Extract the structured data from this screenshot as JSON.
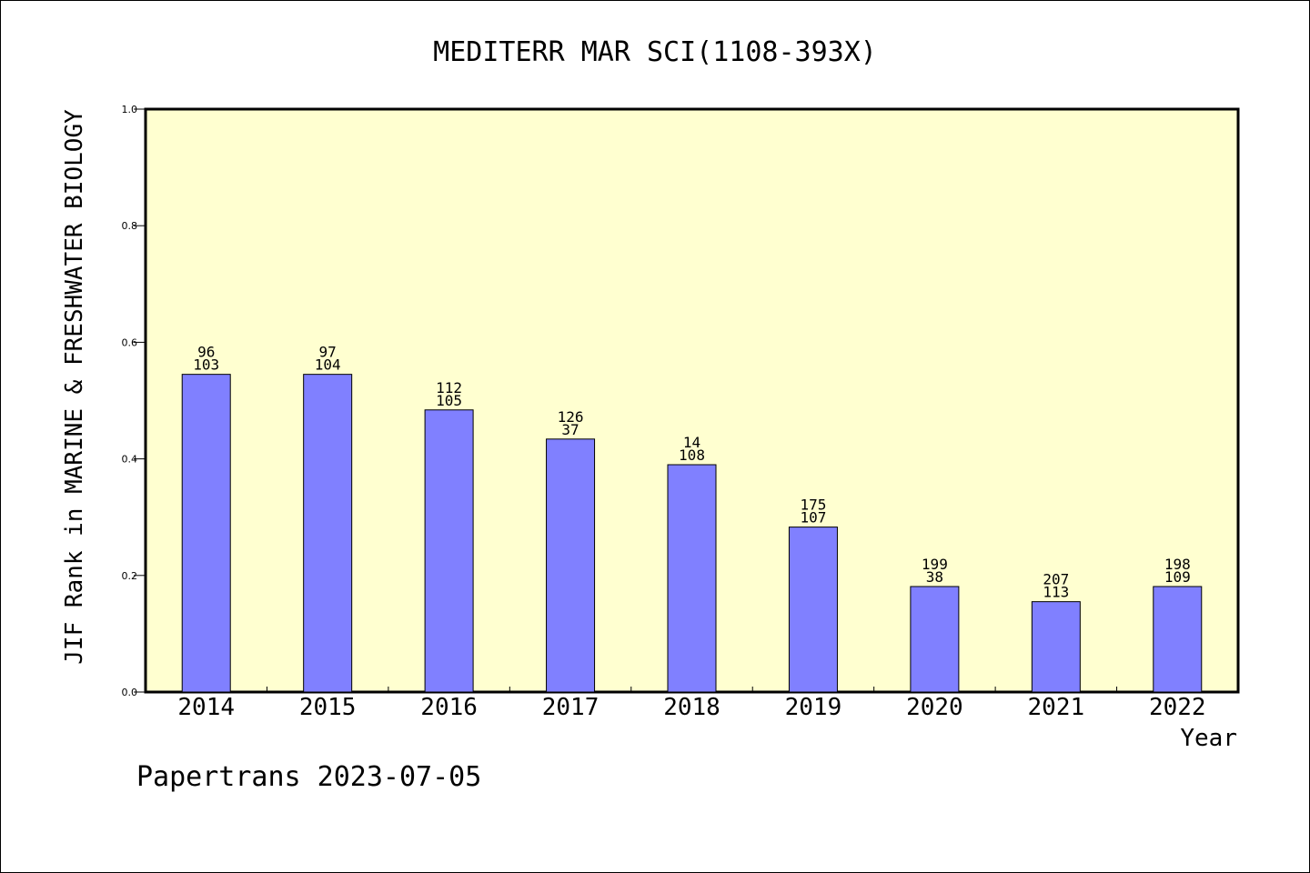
{
  "chart_data": {
    "type": "bar",
    "title": "MEDITERR MAR SCI(1108-393X)",
    "xlabel": "Year",
    "ylabel": "JIF Rank in MARINE & FRESHWATER BIOLOGY",
    "footer": "Papertrans 2023-07-05",
    "categories": [
      "2014",
      "2015",
      "2016",
      "2017",
      "2018",
      "2019",
      "2020",
      "2021",
      "2022"
    ],
    "values": [
      0.545,
      0.545,
      0.484,
      0.434,
      0.39,
      0.283,
      0.181,
      0.155,
      0.181
    ],
    "label_top": [
      "96",
      "97",
      "112",
      "126",
      "14",
      "175",
      "199",
      "207",
      "198"
    ],
    "label_bottom": [
      "103",
      "104",
      "105",
      "37",
      "108",
      "107",
      "38",
      "113",
      "109"
    ],
    "ylim": [
      0,
      1.0
    ],
    "yticks": [
      "0.0",
      "0.2",
      "0.4",
      "0.6",
      "0.8",
      "1.0"
    ],
    "grid": false,
    "legend": "none",
    "colors": {
      "plot_background": "#ffffd0",
      "bar_fill": "#8080ff",
      "bar_stroke": "#000000",
      "axis": "#000000",
      "text": "#000000"
    }
  }
}
